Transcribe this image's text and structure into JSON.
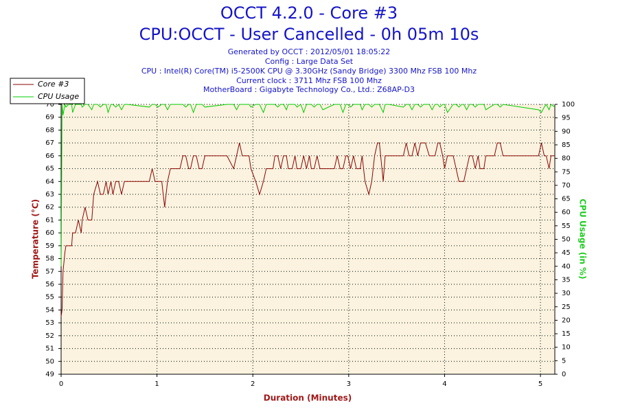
{
  "chart_data": {
    "type": "line",
    "title_lines": [
      "OCCT 4.2.0 - Core #3",
      "CPU:OCCT - User Cancelled - 0h 05m 10s"
    ],
    "subtitle_lines": [
      "Generated by OCCT : 2012/05/01 18:05:22",
      "Config : Large Data Set",
      "CPU : Intel(R) Core(TM) i5-2500K CPU @ 3.30GHz (Sandy Bridge) 3300 Mhz FSB 100 Mhz",
      "Current clock : 3711 Mhz FSB 100 Mhz",
      "MotherBoard : Gigabyte Technology Co., Ltd.: Z68AP-D3"
    ],
    "x_label": "Duration (Minutes)",
    "y_label": "Temperature (°C)",
    "y2_label": "CPU Usage (in %)",
    "xlim": [
      0,
      5.15
    ],
    "xticks": [
      0,
      1,
      2,
      3,
      4,
      5
    ],
    "ylim": [
      49,
      70
    ],
    "yticks": [
      49,
      50,
      51,
      52,
      53,
      54,
      55,
      56,
      57,
      58,
      59,
      60,
      61,
      62,
      63,
      64,
      65,
      66,
      67,
      68,
      69,
      70
    ],
    "y2lim": [
      0,
      100
    ],
    "y2ticks": [
      0,
      5,
      10,
      15,
      20,
      25,
      30,
      35,
      40,
      45,
      50,
      55,
      60,
      65,
      70,
      75,
      80,
      85,
      90,
      95,
      100
    ],
    "grid": true,
    "legend": "top-left",
    "x": [
      0,
      0.01,
      0.02,
      0.04,
      0.05,
      0.08,
      0.11,
      0.12,
      0.15,
      0.18,
      0.21,
      0.22,
      0.25,
      0.28,
      0.32,
      0.34,
      0.38,
      0.41,
      0.44,
      0.47,
      0.49,
      0.52,
      0.54,
      0.57,
      0.6,
      0.63,
      0.66,
      0.69,
      0.92,
      0.95,
      0.98,
      1.01,
      1.05,
      1.08,
      1.11,
      1.14,
      1.24,
      1.27,
      1.3,
      1.33,
      1.35,
      1.38,
      1.41,
      1.44,
      1.47,
      1.5,
      1.73,
      1.8,
      1.83,
      1.86,
      1.89,
      1.96,
      1.98,
      2.03,
      2.07,
      2.11,
      2.14,
      2.21,
      2.23,
      2.26,
      2.29,
      2.32,
      2.35,
      2.37,
      2.41,
      2.44,
      2.46,
      2.5,
      2.53,
      2.56,
      2.59,
      2.61,
      2.64,
      2.67,
      2.7,
      2.73,
      2.85,
      2.88,
      2.91,
      2.94,
      2.97,
      2.99,
      3.02,
      3.05,
      3.08,
      3.12,
      3.14,
      3.17,
      3.21,
      3.24,
      3.27,
      3.3,
      3.32,
      3.36,
      3.38,
      3.42,
      3.57,
      3.6,
      3.63,
      3.66,
      3.69,
      3.72,
      3.75,
      3.78,
      3.8,
      3.84,
      3.87,
      3.9,
      3.93,
      3.95,
      3.98,
      4.0,
      4.03,
      4.09,
      4.12,
      4.15,
      4.18,
      4.2,
      4.23,
      4.26,
      4.29,
      4.32,
      4.35,
      4.37,
      4.41,
      4.43,
      4.52,
      4.55,
      4.58,
      4.61,
      4.98,
      5.01,
      5.04,
      5.06,
      5.09,
      5.11,
      5.15
    ],
    "series": [
      {
        "name": "Core #3",
        "color": "#8b0000",
        "values": [
          53.5,
          54,
          57,
          58.5,
          59,
          59,
          59,
          60,
          60,
          61,
          60,
          61,
          62,
          61,
          61,
          63,
          64,
          63,
          63,
          64,
          63,
          64,
          63,
          64,
          64,
          63,
          64,
          64,
          64,
          65,
          64,
          64,
          64,
          62,
          64,
          65,
          65,
          66,
          66,
          65,
          65,
          66,
          66,
          65,
          65,
          66,
          66,
          65,
          66,
          67,
          66,
          66,
          65,
          64,
          63,
          64,
          65,
          65,
          66,
          66,
          65,
          66,
          66,
          65,
          65,
          66,
          65,
          65,
          66,
          65,
          66,
          65,
          65,
          66,
          65,
          65,
          65,
          66,
          65,
          65,
          66,
          66,
          65,
          66,
          65,
          65,
          66,
          64,
          63,
          64,
          66,
          67,
          67,
          64,
          66,
          66,
          66,
          67,
          66,
          66,
          67,
          66,
          67,
          67,
          67,
          66,
          66,
          66,
          67,
          67,
          66,
          65,
          66,
          66,
          65,
          64,
          64,
          64,
          65,
          66,
          66,
          65,
          66,
          65,
          65,
          66,
          66,
          67,
          67,
          66,
          66,
          67,
          66,
          66,
          65,
          66,
          66
        ]
      },
      {
        "name": "CPU Usage",
        "color": "#00cc00",
        "axis": "y2",
        "values": [
          40,
          100,
          96,
          100,
          99,
          100,
          100,
          97,
          100,
          100,
          100,
          99,
          100,
          100,
          98,
          100,
          100,
          99,
          100,
          100,
          97,
          100,
          100,
          99,
          100,
          98,
          100,
          100,
          99,
          100,
          100,
          99,
          100,
          100,
          98,
          100,
          100,
          100,
          99,
          100,
          100,
          97,
          100,
          100,
          100,
          99,
          100,
          100,
          98,
          100,
          100,
          100,
          99,
          100,
          100,
          97,
          100,
          100,
          100,
          99,
          100,
          100,
          98,
          100,
          100,
          100,
          99,
          100,
          97,
          100,
          100,
          100,
          99,
          100,
          100,
          98,
          100,
          100,
          100,
          97,
          100,
          100,
          99,
          100,
          100,
          100,
          98,
          100,
          100,
          99,
          100,
          100,
          100,
          97,
          100,
          100,
          99,
          100,
          100,
          98,
          100,
          100,
          99,
          100,
          100,
          100,
          98,
          100,
          100,
          99,
          100,
          100,
          97,
          100,
          100,
          99,
          100,
          100,
          98,
          100,
          100,
          99,
          100,
          100,
          100,
          98,
          100,
          100,
          99,
          100,
          98,
          97,
          99,
          100,
          98,
          100,
          99
        ]
      }
    ]
  }
}
